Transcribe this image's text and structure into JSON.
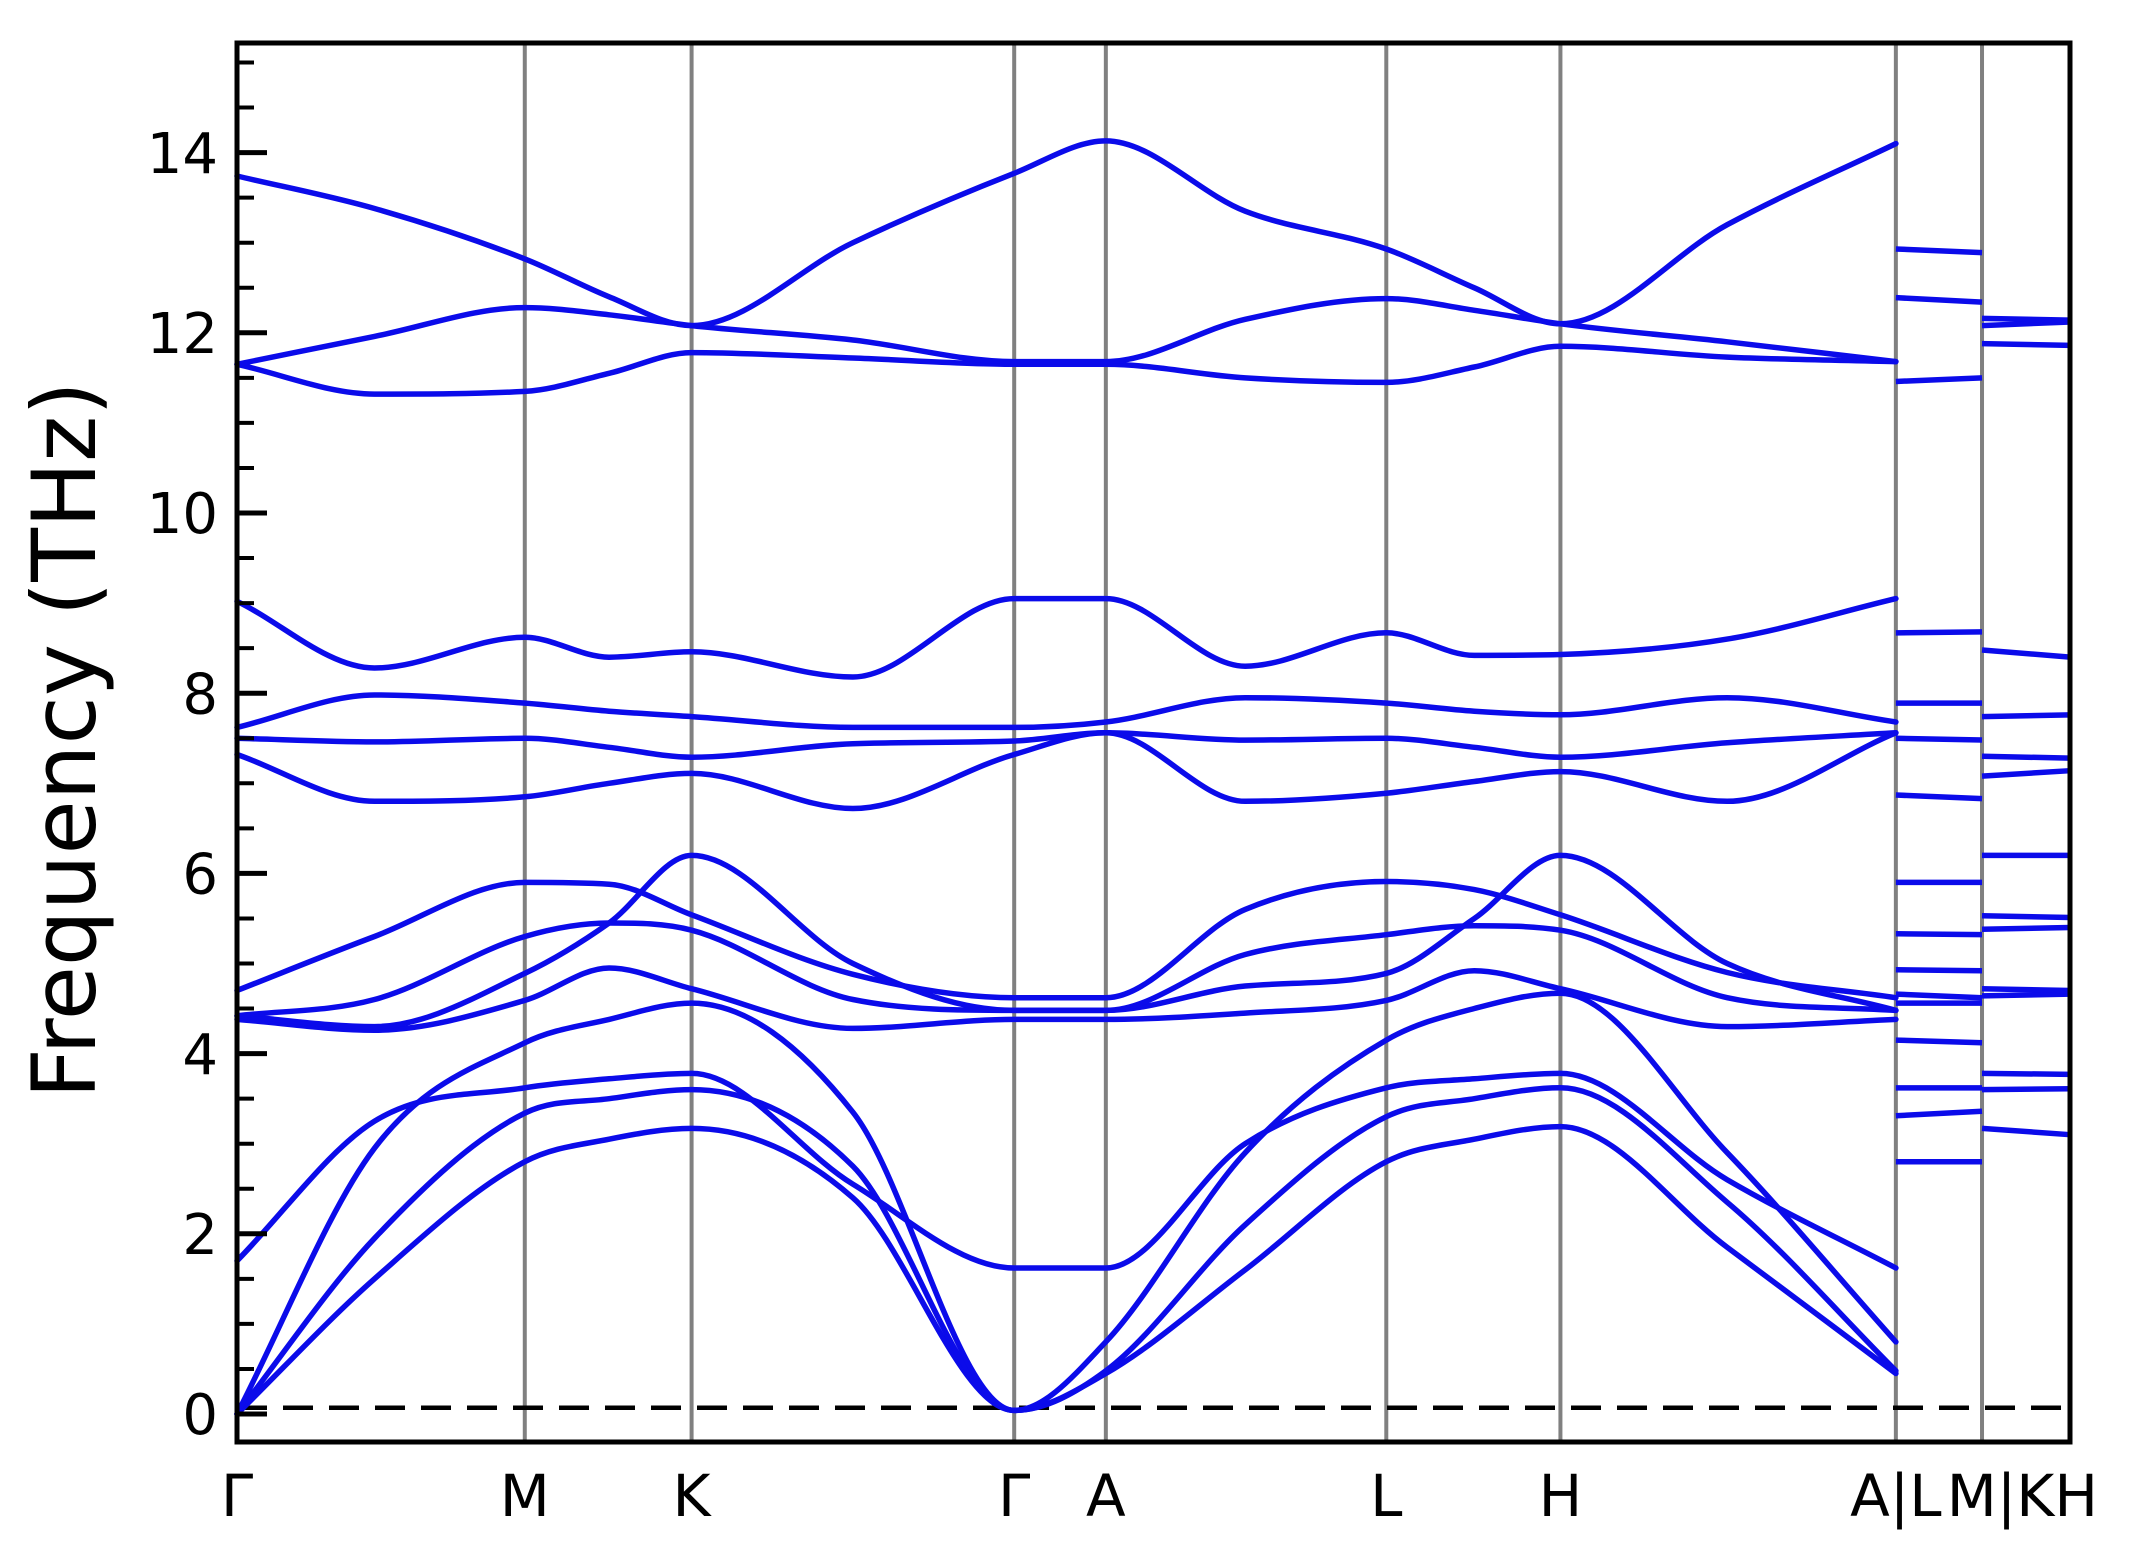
{
  "figure": {
    "background": "#ffffff",
    "kind": "phonon band structure plot"
  },
  "chart_data": {
    "type": "line",
    "subtype": "phonon-dispersion",
    "title": "",
    "xlabel": "",
    "ylabel": "Frequency (THz)",
    "ylim": [
      -0.31,
      15.22
    ],
    "yticks": [
      0,
      2,
      4,
      6,
      8,
      10,
      12,
      14
    ],
    "minor_tick_step_thz": 0.5,
    "grid": "vertical gridlines at high-symmetry k-points",
    "legend_position": "none",
    "colors": {
      "band": "#0b0bea",
      "gridline": "#808080",
      "axis": "#000000",
      "zero_dashed": "#000000",
      "background": "#ffffff"
    },
    "zero_line": {
      "freq": 0.07,
      "dashed": true
    },
    "kpath": [
      "Γ",
      "M",
      "K",
      "Γ",
      "A",
      "L",
      "H",
      "A|L",
      "M|K",
      "H"
    ],
    "x_tick_labels": [
      {
        "label": "Γ",
        "x": 0.0
      },
      {
        "label": "M",
        "x": 0.157
      },
      {
        "label": "K",
        "x": 0.248
      },
      {
        "label": "Γ",
        "x": 0.424
      },
      {
        "label": "A",
        "x": 0.474
      },
      {
        "label": "L",
        "x": 0.627
      },
      {
        "label": "H",
        "x": 0.722
      },
      {
        "label": "A|L",
        "x": 0.905
      },
      {
        "label": "M|KH",
        "x": 0.974
      }
    ],
    "gridlines_x": [
      0.157,
      0.248,
      0.424,
      0.474,
      0.627,
      0.722,
      0.905,
      0.952
    ],
    "band_x_nodes": [
      0.0,
      0.075,
      0.157,
      0.203,
      0.248,
      0.336,
      0.424,
      0.474,
      0.55,
      0.627,
      0.675,
      0.722,
      0.813,
      0.905
    ],
    "bands_thz": [
      [
        0.0,
        1.5,
        2.8,
        3.05,
        3.17,
        2.4,
        0.04,
        0.45,
        1.6,
        2.8,
        3.05,
        3.19,
        1.85,
        0.45
      ],
      [
        0.0,
        1.95,
        3.34,
        3.5,
        3.6,
        2.75,
        0.04,
        0.48,
        2.1,
        3.3,
        3.5,
        3.62,
        2.35,
        0.48
      ],
      [
        0.0,
        2.95,
        4.12,
        4.38,
        4.56,
        3.35,
        0.04,
        0.8,
        2.9,
        4.15,
        4.5,
        4.67,
        2.9,
        0.8
      ],
      [
        1.7,
        3.25,
        3.62,
        3.72,
        3.78,
        2.55,
        1.62,
        1.62,
        3.0,
        3.62,
        3.72,
        3.78,
        2.6,
        1.62
      ],
      [
        4.38,
        4.26,
        4.59,
        4.95,
        4.72,
        4.28,
        4.38,
        4.38,
        4.45,
        4.59,
        4.92,
        4.72,
        4.3,
        4.38
      ],
      [
        4.42,
        4.3,
        4.89,
        5.45,
        6.2,
        5.0,
        4.48,
        4.48,
        4.75,
        4.89,
        5.5,
        6.2,
        5.0,
        4.48
      ],
      [
        4.42,
        4.6,
        5.3,
        5.45,
        5.37,
        4.6,
        4.48,
        4.48,
        5.1,
        5.32,
        5.42,
        5.37,
        4.62,
        4.48
      ],
      [
        4.7,
        5.3,
        5.9,
        5.88,
        5.54,
        4.88,
        4.62,
        4.62,
        5.6,
        5.91,
        5.82,
        5.54,
        4.9,
        4.62
      ],
      [
        7.32,
        6.8,
        6.85,
        7.0,
        7.11,
        6.72,
        7.32,
        7.56,
        6.8,
        6.89,
        7.02,
        7.13,
        6.8,
        7.56
      ],
      [
        7.5,
        7.46,
        7.5,
        7.4,
        7.29,
        7.44,
        7.47,
        7.56,
        7.48,
        7.5,
        7.4,
        7.29,
        7.45,
        7.56
      ],
      [
        7.62,
        7.98,
        7.89,
        7.8,
        7.74,
        7.62,
        7.62,
        7.68,
        7.95,
        7.89,
        7.8,
        7.76,
        7.95,
        7.68
      ],
      [
        9.02,
        8.28,
        8.62,
        8.4,
        8.46,
        8.18,
        9.05,
        9.05,
        8.3,
        8.67,
        8.42,
        8.43,
        8.6,
        9.05
      ],
      [
        11.65,
        11.32,
        11.35,
        11.55,
        11.78,
        11.72,
        11.65,
        11.65,
        11.5,
        11.45,
        11.62,
        11.85,
        11.73,
        11.68
      ],
      [
        11.65,
        11.96,
        12.28,
        12.2,
        12.08,
        11.92,
        11.68,
        11.68,
        12.15,
        12.38,
        12.25,
        12.1,
        11.9,
        11.68
      ],
      [
        13.74,
        13.38,
        12.82,
        12.4,
        12.08,
        13.0,
        13.77,
        14.13,
        13.35,
        12.93,
        12.5,
        12.1,
        13.2,
        14.1
      ]
    ],
    "panel_LM": {
      "x_range": [
        0.905,
        0.952
      ],
      "lines_thz": [
        [
          2.8,
          2.8
        ],
        [
          3.31,
          3.36
        ],
        [
          3.62,
          3.62
        ],
        [
          4.15,
          4.12
        ],
        [
          4.56,
          4.56
        ],
        [
          4.66,
          4.62
        ],
        [
          4.93,
          4.92
        ],
        [
          5.33,
          5.32
        ],
        [
          5.9,
          5.9
        ],
        [
          6.87,
          6.83
        ],
        [
          7.5,
          7.48
        ],
        [
          7.89,
          7.89
        ],
        [
          8.67,
          8.68
        ],
        [
          11.46,
          11.5
        ],
        [
          12.39,
          12.34
        ],
        [
          12.93,
          12.89
        ]
      ]
    },
    "panel_KH": {
      "x_range": [
        0.952,
        1.0
      ],
      "lines_thz": [
        [
          3.17,
          3.1
        ],
        [
          3.6,
          3.61
        ],
        [
          3.78,
          3.77
        ],
        [
          4.64,
          4.66
        ],
        [
          4.72,
          4.7
        ],
        [
          5.38,
          5.4
        ],
        [
          5.53,
          5.51
        ],
        [
          6.2,
          6.2
        ],
        [
          7.08,
          7.14
        ],
        [
          7.3,
          7.28
        ],
        [
          7.74,
          7.76
        ],
        [
          8.48,
          8.4
        ],
        [
          11.88,
          11.86
        ],
        [
          12.08,
          12.12
        ],
        [
          12.16,
          12.14
        ]
      ]
    }
  }
}
